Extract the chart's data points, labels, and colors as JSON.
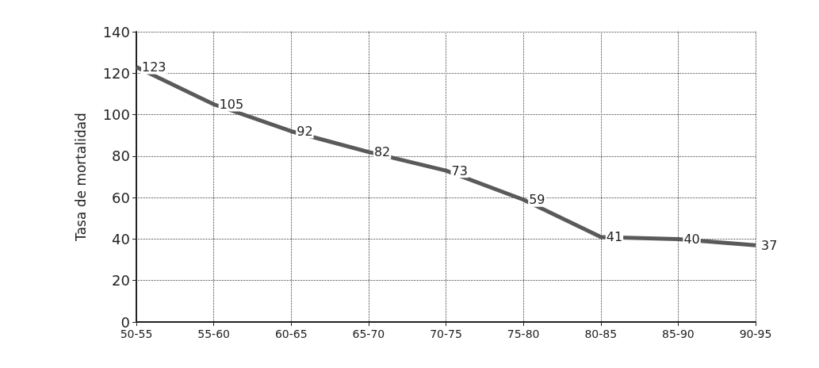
{
  "chart_data": {
    "type": "line",
    "ylabel": "Tasa de mortalidad",
    "categories": [
      "50-55",
      "55-60",
      "60-65",
      "65-70",
      "70-75",
      "75-80",
      "80-85",
      "85-90",
      "90-95"
    ],
    "values": [
      123,
      105,
      92,
      82,
      73,
      59,
      41,
      40,
      37
    ],
    "color": "#5a5a5a",
    "ylim": [
      0,
      140
    ],
    "yticks": [
      0,
      20,
      40,
      60,
      80,
      100,
      120,
      140
    ],
    "grid": true,
    "data_labels": true,
    "marker": "none",
    "line_style": "solid"
  }
}
